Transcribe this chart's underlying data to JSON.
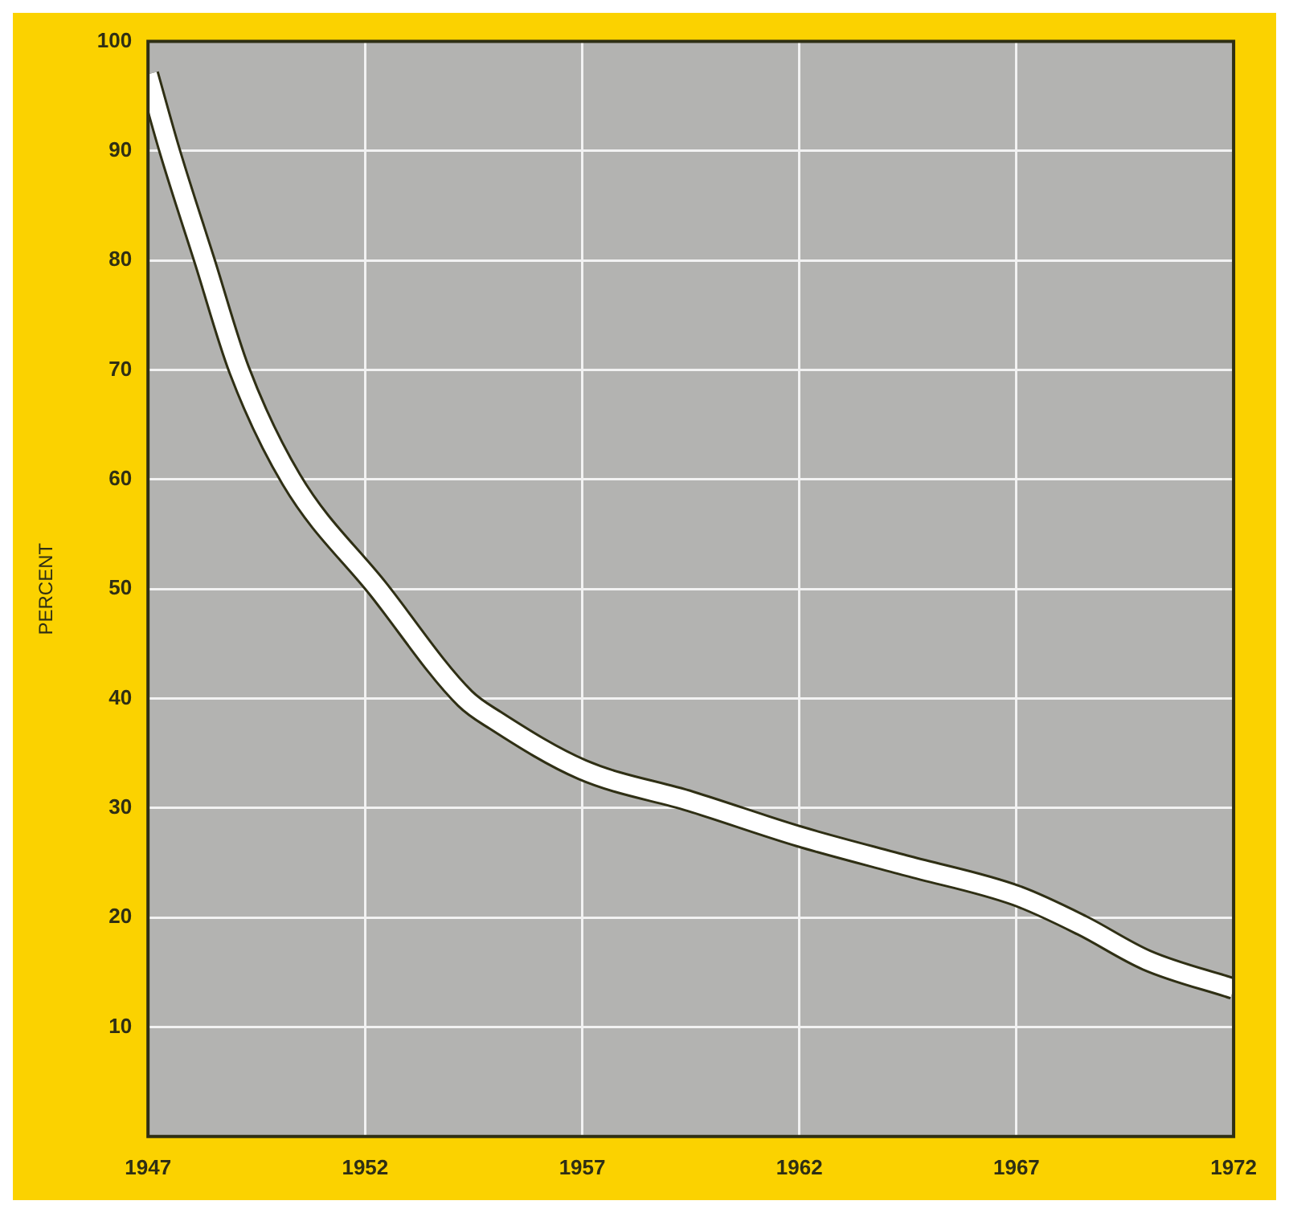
{
  "chart_data": {
    "type": "line",
    "ylabel": "PERCENT",
    "x": [
      1947,
      1947.5,
      1948.3,
      1949.1,
      1950.3,
      1952.3,
      1954.3,
      1955,
      1957,
      1959.5,
      1962,
      1964.5,
      1967,
      1968.5,
      1970,
      1972
    ],
    "series": [
      {
        "color": "#ffffff",
        "values": [
          97,
          90,
          80,
          70,
          60,
          50,
          40,
          38,
          33.5,
          30.6,
          27.4,
          24.7,
          22,
          19.3,
          16.1,
          13.5
        ]
      }
    ],
    "xlim": [
      1947,
      1972
    ],
    "xticks": [
      1947,
      1952,
      1957,
      1962,
      1967,
      1972
    ],
    "ylim": [
      0,
      100
    ],
    "yticks": [
      10,
      20,
      30,
      40,
      50,
      60,
      70,
      80,
      90,
      100
    ],
    "grid": true,
    "marker": "none",
    "line_style": "solid",
    "legend": false
  }
}
